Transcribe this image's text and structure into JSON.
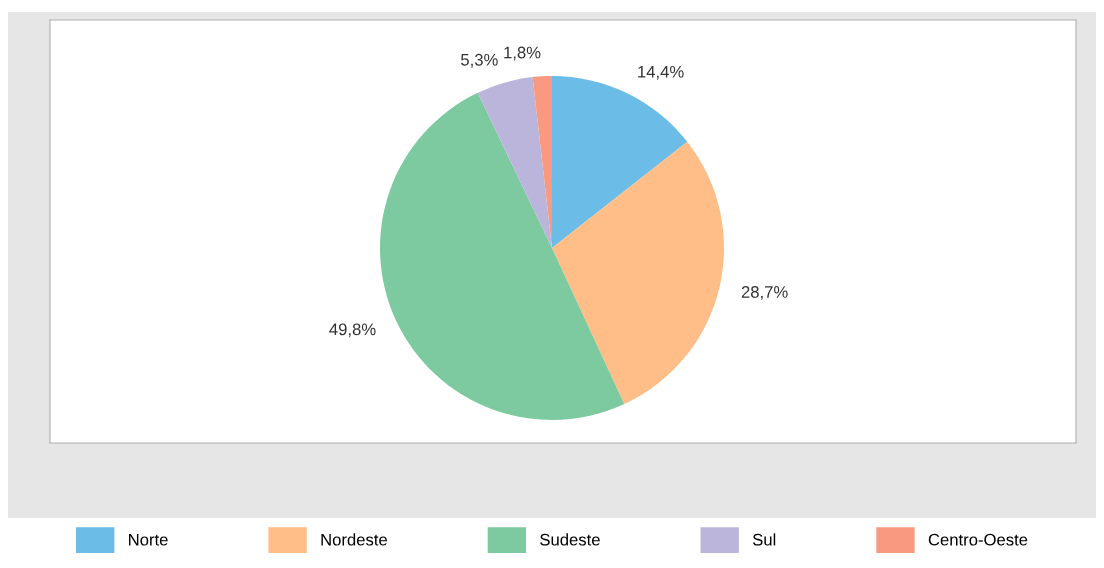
{
  "chart_data": {
    "type": "pie",
    "categories": [
      "Norte",
      "Nordeste",
      "Sudeste",
      "Sul",
      "Centro-Oeste"
    ],
    "values": [
      14.4,
      28.7,
      49.8,
      5.3,
      1.8
    ],
    "value_labels": [
      "14,4%",
      "28,7%",
      "49,8%",
      "5,3%",
      "1,8%"
    ],
    "colors": [
      "#6bbde8",
      "#ffbd87",
      "#7dcaa0",
      "#bbb5db",
      "#f99a80"
    ],
    "legend": "bottom"
  }
}
